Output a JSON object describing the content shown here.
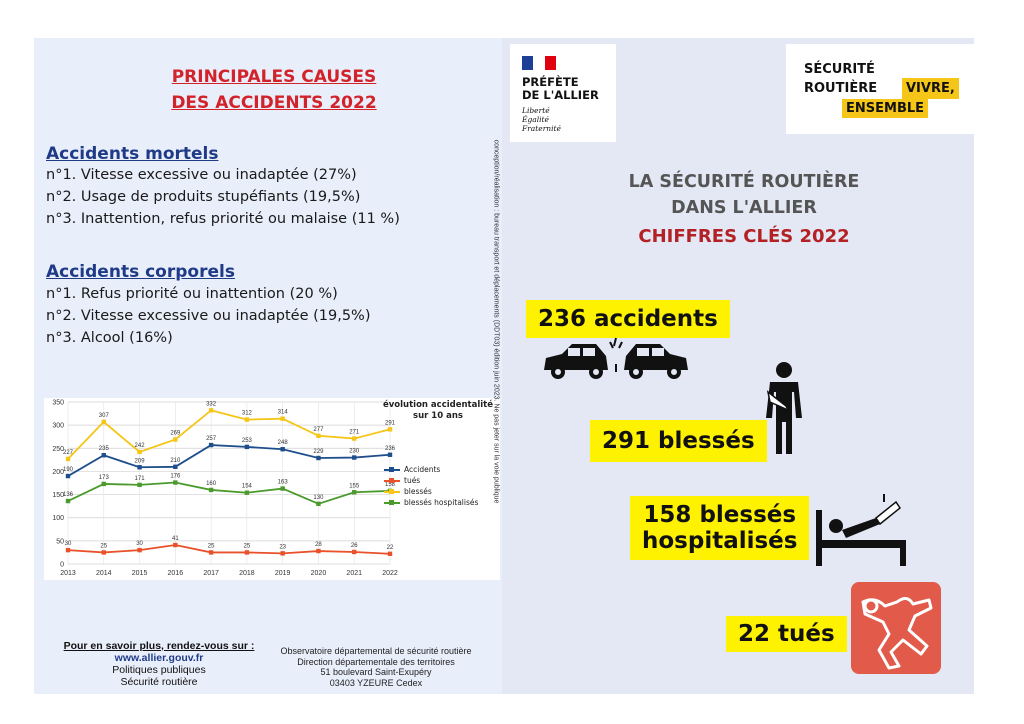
{
  "causes": {
    "title_line1": "PRINCIPALES CAUSES",
    "title_line2": "DES ACCIDENTS 2022",
    "mortels": {
      "heading": "Accidents mortels",
      "items": [
        "n°1. Vitesse excessive ou inadaptée (27%)",
        "n°2. Usage de produits stupéfiants (19,5%)",
        "n°3. Inattention, refus priorité ou malaise (11 %)"
      ]
    },
    "corporels": {
      "heading": "Accidents corporels",
      "items": [
        "n°1.  Refus priorité ou inattention (20 %)",
        "n°2. Vitesse excessive ou inadaptée (19,5%)",
        "n°3. Alcool (16%)"
      ]
    }
  },
  "chart_data": {
    "type": "line",
    "title": "évolution accidentalité sur 10 ans",
    "x": [
      "2013",
      "2014",
      "2015",
      "2016",
      "2017",
      "2018",
      "2019",
      "2020",
      "2021",
      "2022"
    ],
    "ylim": [
      0,
      350
    ],
    "yticks": [
      0,
      50,
      100,
      150,
      200,
      250,
      300,
      350
    ],
    "grid": true,
    "legend_position": "right",
    "series": [
      {
        "name": "Accidents",
        "color": "#1f4e8c",
        "values": [
          190,
          235,
          209,
          210,
          257,
          253,
          248,
          229,
          230,
          236
        ]
      },
      {
        "name": "tués",
        "color": "#e8512a",
        "values": [
          30,
          25,
          30,
          41,
          25,
          25,
          23,
          28,
          26,
          22
        ]
      },
      {
        "name": "blessés",
        "color": "#f5c518",
        "values": [
          227,
          307,
          242,
          269,
          332,
          312,
          314,
          277,
          271,
          291
        ]
      },
      {
        "name": "blessés hospitalisés",
        "color": "#4a9a2c",
        "values": [
          136,
          173,
          171,
          176,
          160,
          154,
          163,
          130,
          155,
          158
        ]
      }
    ]
  },
  "footer": {
    "more_info": "Pour en savoir plus, rendez-vous sur :",
    "url": "www.allier.gouv.fr",
    "line2": "Politiques publiques",
    "line3": "Sécurité routière",
    "obs1": "Observatoire départemental de sécurité routière",
    "obs2": "Direction départementale des territoires",
    "obs3": "51 boulevard Saint-Exupéry",
    "obs4": "03403 YZEURE Cedex"
  },
  "vertical_text": "conception/réalisation : bureau transport et déplacements (DDT03) édition juin 2023. Ne pas jeter sur la voie publique",
  "prefecture": {
    "line1": "PRÉFÈTE",
    "line2": "DE L'ALLIER",
    "motto1": "Liberté",
    "motto2": "Égalité",
    "motto3": "Fraternité",
    "flag_colors": [
      "#1d3f95",
      "#ffffff",
      "#e1000f"
    ]
  },
  "securite_routiere": {
    "l1": "SÉCURITÉ",
    "l2": "ROUTIÈRE",
    "l2_highlight": "VIVRE,",
    "l3_highlight": "ENSEMBLE",
    "highlight_color": "#f5c518"
  },
  "headline": {
    "l1": "LA SÉCURITÉ ROUTIÈRE",
    "l2": "DANS L'ALLIER",
    "l3": "CHIFFRES CLÉS 2022"
  },
  "key_figures": {
    "accidents": "236 accidents",
    "blesses": "291 blessés",
    "hosp_l1": "158 blessés",
    "hosp_l2": "hospitalisés",
    "tues": "22 tués"
  },
  "icons": [
    "car-crash-icon",
    "injured-person-icon",
    "hospital-bed-icon",
    "body-outline-icon"
  ]
}
